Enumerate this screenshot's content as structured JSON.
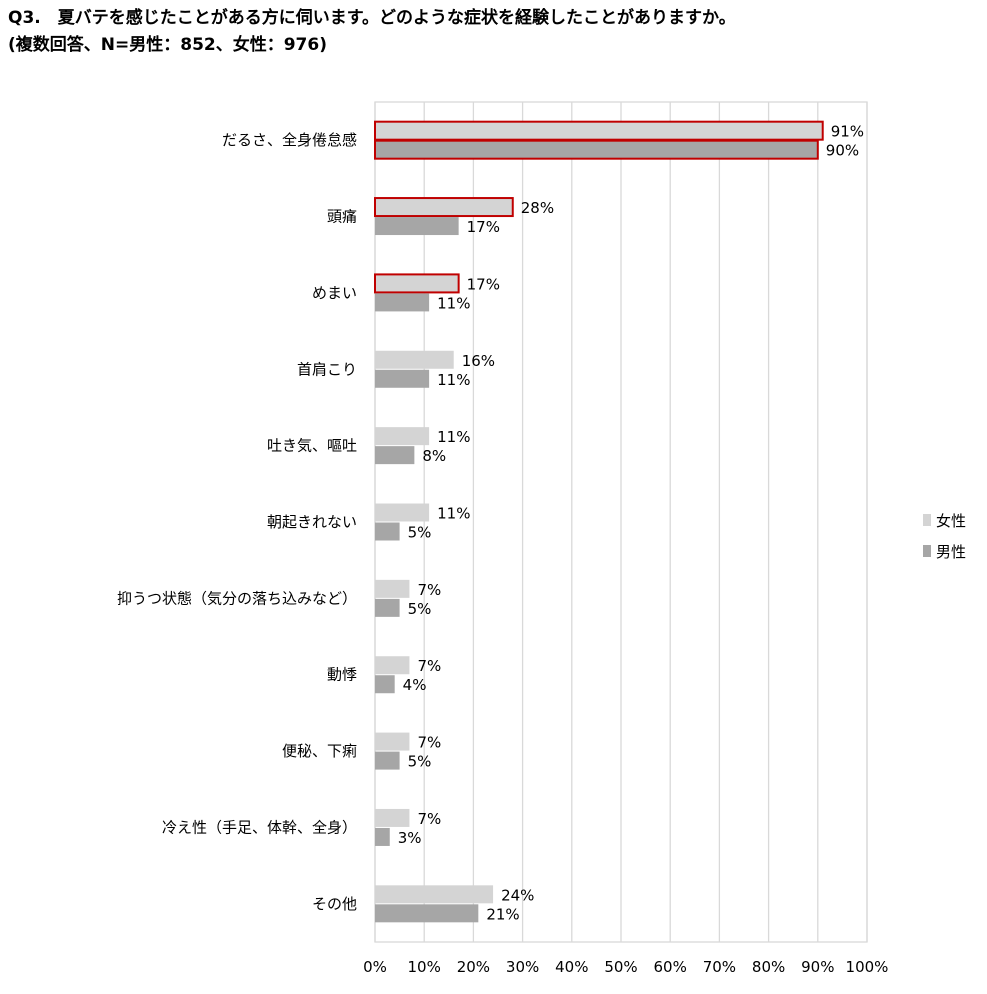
{
  "header": {
    "title_line1": "Q3.　夏バテを感じたことがある方に伺います。どのような症状を経験したことがありますか。",
    "title_line2": "(複数回答、N=男性：852、女性：976)"
  },
  "chart_data": {
    "type": "bar",
    "orientation": "horizontal",
    "title": "",
    "xlabel": "",
    "ylabel": "",
    "xlim": [
      0,
      100
    ],
    "x_ticks": [
      "0%",
      "10%",
      "20%",
      "30%",
      "40%",
      "50%",
      "60%",
      "70%",
      "80%",
      "90%",
      "100%"
    ],
    "grid": "vertical",
    "legend_position": "right",
    "categories": [
      "だるさ、全身倦怠感",
      "頭痛",
      "めまい",
      "首肩こり",
      "吐き気、嘔吐",
      "朝起きれない",
      "抑うつ状態（気分の落ち込みなど）",
      "動悸",
      "便秘、下痢",
      "冷え性（手足、体幹、全身）",
      "その他"
    ],
    "series": [
      {
        "name": "女性",
        "color": "#d4d4d4",
        "values": [
          91,
          28,
          17,
          16,
          11,
          11,
          7,
          7,
          7,
          7,
          24
        ],
        "labels": [
          "91%",
          "28%",
          "17%",
          "16%",
          "11%",
          "11%",
          "7%",
          "7%",
          "7%",
          "7%",
          "24%"
        ]
      },
      {
        "name": "男性",
        "color": "#a6a6a6",
        "values": [
          90,
          17,
          11,
          11,
          8,
          5,
          5,
          4,
          5,
          3,
          21
        ],
        "labels": [
          "90%",
          "17%",
          "11%",
          "11%",
          "8%",
          "5%",
          "5%",
          "4%",
          "5%",
          "3%",
          "21%"
        ]
      }
    ],
    "highlight": {
      "color": "#c00000",
      "bars": [
        [
          0,
          0
        ],
        [
          0,
          1
        ],
        [
          1,
          0
        ],
        [
          2,
          0
        ]
      ]
    }
  }
}
